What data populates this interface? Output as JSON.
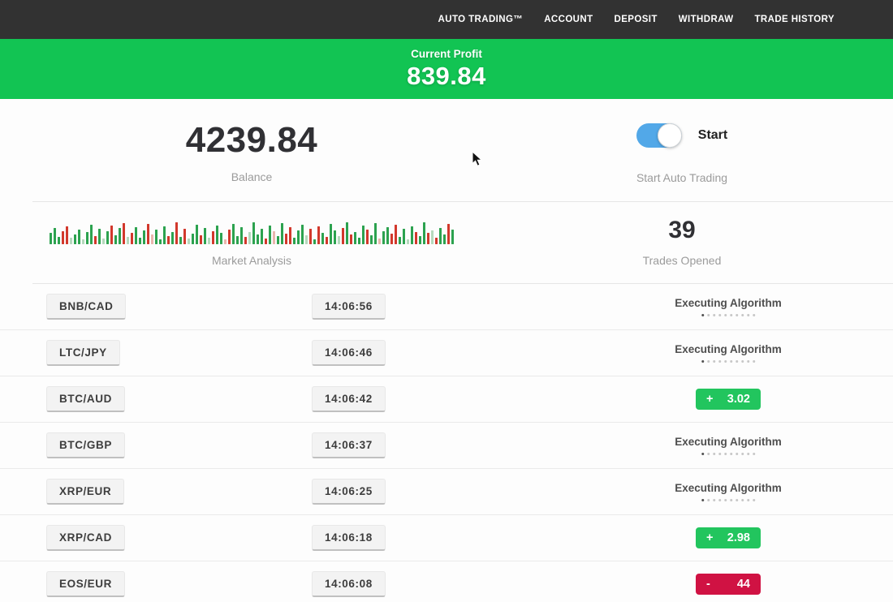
{
  "nav": {
    "items": [
      "AUTO TRADING™",
      "ACCOUNT",
      "DEPOSIT",
      "WITHDRAW",
      "TRADE HISTORY"
    ]
  },
  "profit_banner": {
    "label": "Current Profit",
    "value": "839.84"
  },
  "account": {
    "balance": "4239.84",
    "balance_label": "Balance",
    "toggle_label": "Start",
    "toggle_caption": "Start Auto Trading",
    "toggle_state": "on"
  },
  "market": {
    "label": "Market Analysis",
    "trades_opened": "39",
    "trades_label": "Trades Opened",
    "bars": [
      "14g",
      "20g",
      "9g",
      "16r",
      "22r",
      "8G",
      "12g",
      "18g",
      "6G",
      "15g",
      "24g",
      "10r",
      "19g",
      "7G",
      "16g",
      "23r",
      "11g",
      "20g",
      "26r",
      "9G",
      "14r",
      "21g",
      "8g",
      "17g",
      "25r",
      "12R",
      "18g",
      "6g",
      "22g",
      "10r",
      "15g",
      "27r",
      "9g",
      "19r",
      "7G",
      "13g",
      "24g",
      "11r",
      "20g",
      "8G",
      "16r",
      "23g",
      "14g",
      "6R",
      "18r",
      "25g",
      "10g",
      "21g",
      "9r",
      "15G",
      "27g",
      "12g",
      "19g",
      "7r",
      "23g",
      "16R",
      "10g",
      "26g",
      "13r",
      "21r",
      "8g",
      "17g",
      "24g",
      "11G",
      "19r",
      "6g",
      "22r",
      "14g",
      "9r",
      "25g",
      "17g",
      "10G",
      "20r",
      "27g",
      "12r",
      "15g",
      "8g",
      "23g",
      "18r",
      "11g",
      "26g",
      "7R",
      "16g",
      "21g",
      "13r",
      "24r",
      "9g",
      "19g",
      "6G",
      "22g",
      "15r",
      "10g",
      "27g",
      "14r",
      "17G",
      "8r",
      "20g",
      "12g",
      "25r",
      "18g"
    ]
  },
  "rows": [
    {
      "pair": "BNB/CAD",
      "time": "14:06:56",
      "status": {
        "type": "executing",
        "label": "Executing Algorithm"
      }
    },
    {
      "pair": "LTC/JPY",
      "time": "14:06:46",
      "status": {
        "type": "executing",
        "label": "Executing Algorithm"
      }
    },
    {
      "pair": "BTC/AUD",
      "time": "14:06:42",
      "status": {
        "type": "profit",
        "sign": "+",
        "value": "3.02"
      }
    },
    {
      "pair": "BTC/GBP",
      "time": "14:06:37",
      "status": {
        "type": "executing",
        "label": "Executing Algorithm"
      }
    },
    {
      "pair": "XRP/EUR",
      "time": "14:06:25",
      "status": {
        "type": "executing",
        "label": "Executing Algorithm"
      }
    },
    {
      "pair": "XRP/CAD",
      "time": "14:06:18",
      "status": {
        "type": "profit",
        "sign": "+",
        "value": "2.98"
      }
    },
    {
      "pair": "EOS/EUR",
      "time": "14:06:08",
      "status": {
        "type": "loss",
        "sign": "-",
        "value": "44"
      }
    }
  ],
  "colors": {
    "banner_green": "#12c453",
    "profit_green": "#22c55e",
    "loss_red": "#d01243",
    "toggle_blue": "#52a8e8",
    "nav_bg": "#323232",
    "bar_green": "#2ca24f",
    "bar_red": "#d2382c"
  }
}
